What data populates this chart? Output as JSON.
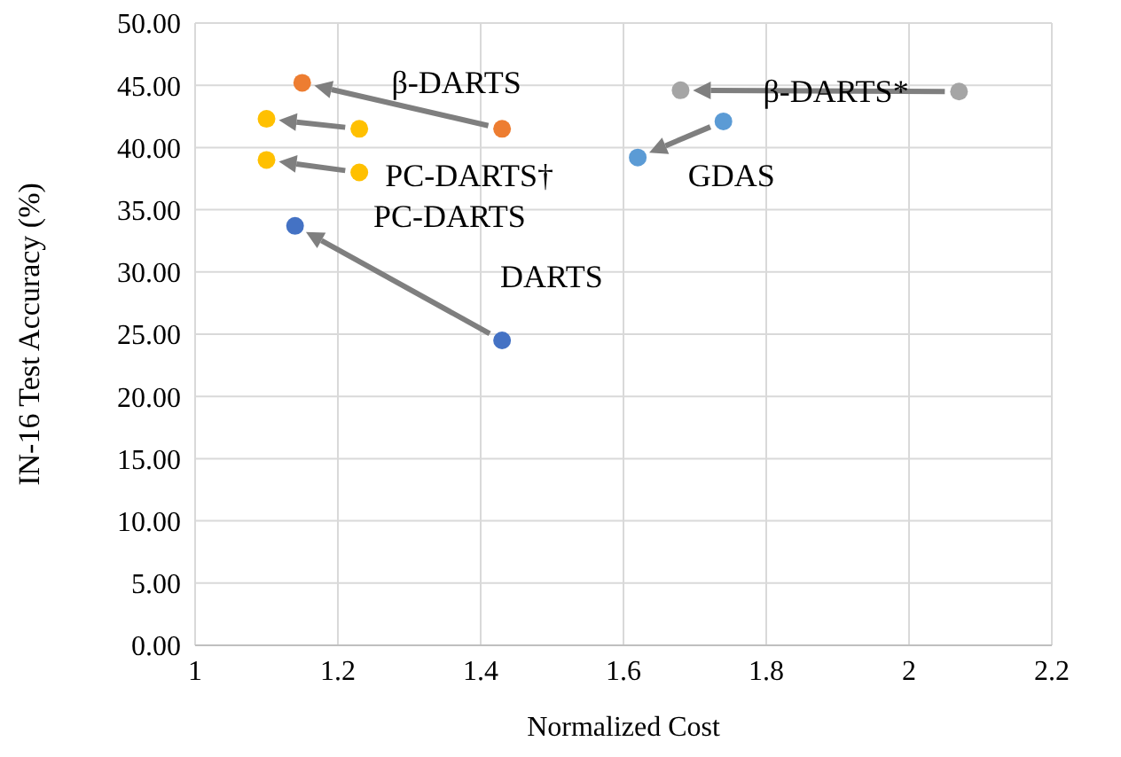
{
  "chart_data": {
    "type": "scatter",
    "xlabel": "Normalized Cost",
    "ylabel": "IN-16 Test Accuracy (%)",
    "xlim": [
      1,
      2.2
    ],
    "xticks": [
      1,
      1.2,
      1.4,
      1.6,
      1.8,
      2,
      2.2
    ],
    "ylim": [
      0,
      50
    ],
    "yticks": [
      {
        "value": 0,
        "label": "0.00"
      },
      {
        "value": 5,
        "label": "5.00"
      },
      {
        "value": 10,
        "label": "10.00"
      },
      {
        "value": 15,
        "label": "15.00"
      },
      {
        "value": 20,
        "label": "20.00"
      },
      {
        "value": 25,
        "label": "25.00"
      },
      {
        "value": 30,
        "label": "30.00"
      },
      {
        "value": 35,
        "label": "35.00"
      },
      {
        "value": 40,
        "label": "40.00"
      },
      {
        "value": 45,
        "label": "45.00"
      },
      {
        "value": 50,
        "label": "50.00"
      }
    ],
    "grid": true,
    "legend": false,
    "marker": "circle",
    "series": [
      {
        "color": "#4472c4",
        "x": [
          1.43,
          1.14
        ],
        "values": [
          24.5,
          33.7
        ]
      },
      {
        "color": "#ffc000",
        "x": [
          1.23,
          1.1
        ],
        "values": [
          38.0,
          39.0
        ]
      },
      {
        "color": "#ffc000",
        "x": [
          1.23,
          1.1
        ],
        "values": [
          41.5,
          42.3
        ]
      },
      {
        "color": "#ed7d31",
        "x": [
          1.43,
          1.15
        ],
        "values": [
          41.5,
          45.2
        ]
      },
      {
        "color": "#5b9bd5",
        "x": [
          1.74,
          1.62
        ],
        "values": [
          42.1,
          39.2
        ]
      },
      {
        "color": "#a5a5a5",
        "x": [
          2.07,
          1.68
        ],
        "values": [
          44.5,
          44.6
        ]
      }
    ],
    "annotations": [
      "β-DARTS",
      "PC-DARTS†",
      "PC-DARTS",
      "DARTS",
      "β-DARTS*",
      "GDAS"
    ]
  }
}
